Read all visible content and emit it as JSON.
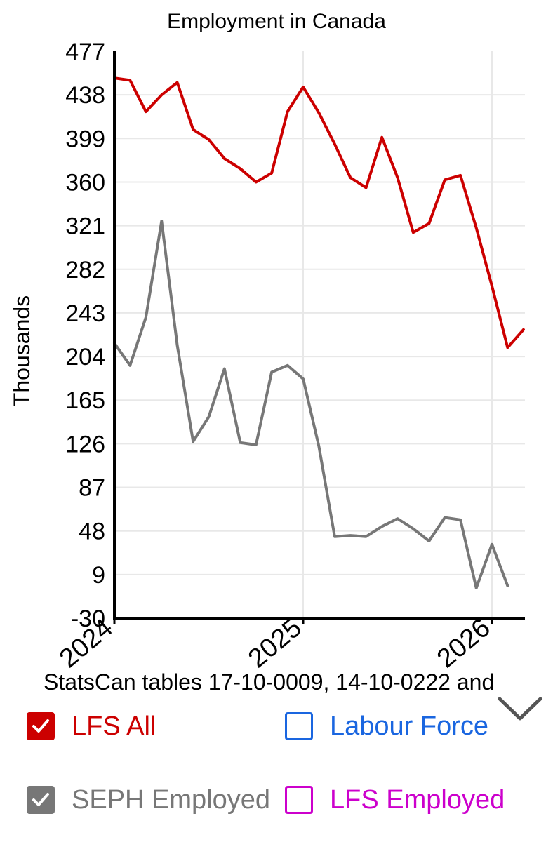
{
  "chart_data": {
    "type": "line",
    "title": "Employment in Canada",
    "ylabel": "Thousands",
    "xlabel": "",
    "ylim": [
      -30,
      477
    ],
    "yticks": [
      "477",
      "438",
      "399",
      "360",
      "321",
      "282",
      "243",
      "204",
      "165",
      "126",
      "87",
      "48",
      "9",
      "-30"
    ],
    "xlim": [
      2024.0,
      2026.17
    ],
    "xticks": [
      "2024",
      "2025",
      "2026"
    ],
    "grid": true,
    "series": [
      {
        "name": "LFS All",
        "color": "#cc0000",
        "x": [
          2024.0,
          2024.083,
          2024.167,
          2024.25,
          2024.333,
          2024.417,
          2024.5,
          2024.583,
          2024.667,
          2024.75,
          2024.833,
          2024.917,
          2025.0,
          2025.083,
          2025.167,
          2025.25,
          2025.333,
          2025.417,
          2025.5,
          2025.583,
          2025.667,
          2025.75,
          2025.833,
          2025.917,
          2026.0,
          2026.083,
          2026.167
        ],
        "values": [
          453,
          451,
          423,
          438,
          449,
          407,
          398,
          381,
          372,
          360,
          368,
          423,
          445,
          422,
          394,
          364,
          355,
          400,
          364,
          315,
          323,
          362,
          366,
          319,
          267,
          212,
          228
        ]
      },
      {
        "name": "SEPH Employed",
        "color": "#777777",
        "x": [
          2024.0,
          2024.083,
          2024.167,
          2024.25,
          2024.333,
          2024.417,
          2024.5,
          2024.583,
          2024.667,
          2024.75,
          2024.833,
          2024.917,
          2025.0,
          2025.083,
          2025.167,
          2025.25,
          2025.333,
          2025.417,
          2025.5,
          2025.583,
          2025.667,
          2025.75,
          2025.833,
          2025.917,
          2026.0,
          2026.083
        ],
        "values": [
          216,
          196,
          239,
          325,
          214,
          128,
          150,
          193,
          127,
          125,
          190,
          196,
          184,
          124,
          43,
          44,
          43,
          52,
          59,
          50,
          39,
          60,
          58,
          -3,
          36,
          -1
        ]
      },
      {
        "name": "Labour Force",
        "color": "#1a66e0",
        "values": []
      },
      {
        "name": "LFS Employed",
        "color": "#cc00cc",
        "values": []
      }
    ]
  },
  "source_text": "StatsCan tables 17-10-0009, 14-10-0222 and",
  "legend": [
    {
      "label": "LFS All",
      "checked": true,
      "color": "#cc0000",
      "check_icon": "check-icon"
    },
    {
      "label": "Labour Force",
      "checked": false,
      "color": "#1a66e0"
    },
    {
      "label": "SEPH Employed",
      "checked": true,
      "color": "#777777",
      "check_icon": "check-icon"
    },
    {
      "label": "LFS Employed",
      "checked": false,
      "color": "#cc00cc"
    }
  ],
  "expand_icon": "chevron-down-icon"
}
